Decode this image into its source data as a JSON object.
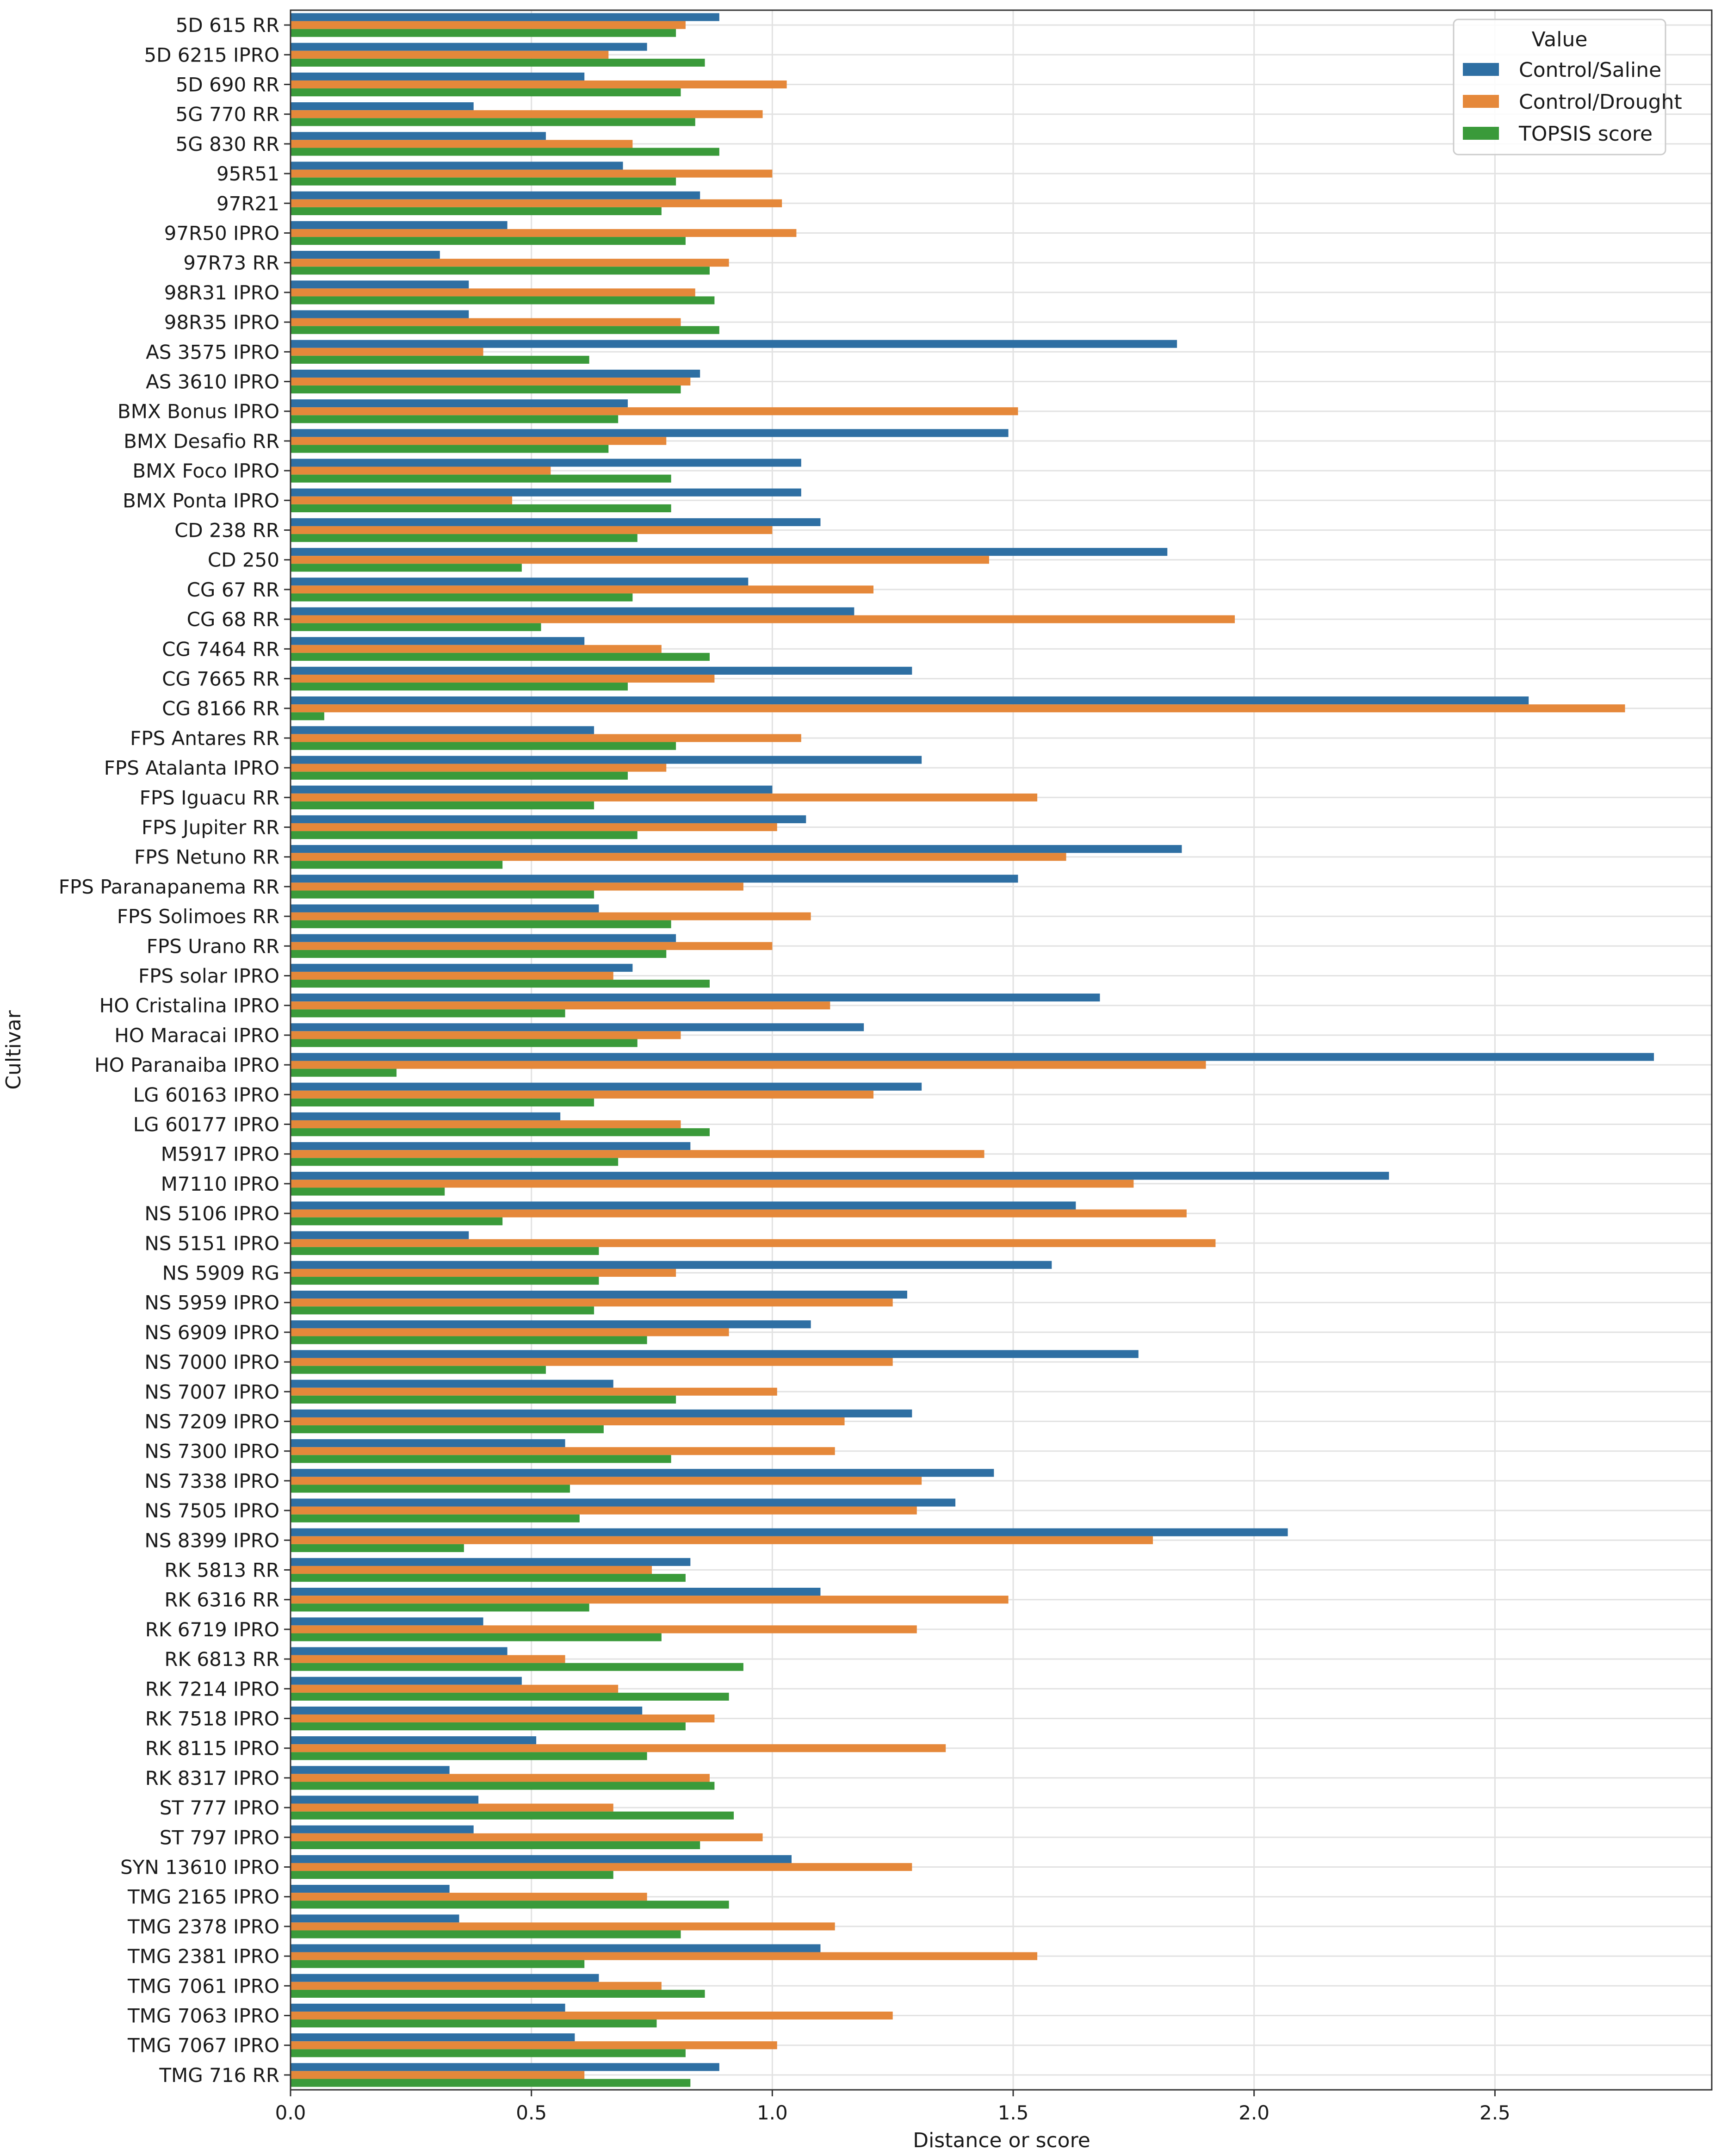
{
  "chart_data": {
    "type": "bar",
    "orientation": "horizontal",
    "title": "",
    "xlabel": "Distance or score",
    "ylabel": "Cultivar",
    "xlim": [
      0,
      2.95
    ],
    "xticks": [
      "0.0",
      "0.5",
      "1.0",
      "1.5",
      "2.0",
      "2.5"
    ],
    "grid": true,
    "legend": {
      "title": "Value",
      "position": "top-right"
    },
    "categories": [
      "5D 615 RR",
      "5D 6215 IPRO",
      "5D 690 RR",
      "5G 770 RR",
      "5G 830 RR",
      "95R51",
      "97R21",
      "97R50 IPRO",
      "97R73 RR",
      "98R31 IPRO",
      "98R35 IPRO",
      "AS 3575 IPRO",
      "AS 3610 IPRO",
      "BMX Bonus IPRO",
      "BMX Desafio RR",
      "BMX Foco IPRO",
      "BMX Ponta IPRO",
      "CD 238 RR",
      "CD 250",
      "CG 67 RR",
      "CG 68 RR",
      "CG 7464 RR",
      "CG 7665 RR",
      "CG 8166 RR",
      "FPS Antares RR",
      "FPS Atalanta IPRO",
      "FPS Iguacu RR",
      "FPS Jupiter RR",
      "FPS Netuno RR",
      "FPS Paranapanema RR",
      "FPS Solimoes RR",
      "FPS Urano RR",
      "FPS solar IPRO",
      "HO Cristalina IPRO",
      "HO Maracai IPRO",
      "HO Paranaiba IPRO",
      "LG 60163 IPRO",
      "LG 60177 IPRO",
      "M5917 IPRO",
      "M7110 IPRO",
      "NS 5106 IPRO",
      "NS 5151 IPRO",
      "NS 5909 RG",
      "NS 5959 IPRO",
      "NS 6909 IPRO",
      "NS 7000 IPRO",
      "NS 7007 IPRO",
      "NS 7209 IPRO",
      "NS 7300 IPRO",
      "NS 7338 IPRO",
      "NS 7505 IPRO",
      "NS 8399 IPRO",
      "RK 5813 RR",
      "RK 6316 RR",
      "RK 6719 IPRO",
      "RK 6813 RR",
      "RK 7214 IPRO",
      "RK 7518 IPRO",
      "RK 8115 IPRO",
      "RK 8317 IPRO",
      "ST 777 IPRO",
      "ST 797 IPRO",
      "SYN 13610 IPRO",
      "TMG 2165 IPRO",
      "TMG 2378 IPRO",
      "TMG 2381 IPRO",
      "TMG 7061 IPRO",
      "TMG 7063 IPRO",
      "TMG 7067 IPRO",
      "TMG 716 RR"
    ],
    "series": [
      {
        "name": "Control/Saline",
        "color": "#2e6fa3",
        "values": [
          0.89,
          0.74,
          0.61,
          0.38,
          0.53,
          0.69,
          0.85,
          0.45,
          0.31,
          0.37,
          0.37,
          1.84,
          0.85,
          0.7,
          1.49,
          1.06,
          1.06,
          1.1,
          1.82,
          0.95,
          1.17,
          0.61,
          1.29,
          2.57,
          0.63,
          1.31,
          1.0,
          1.07,
          1.85,
          1.51,
          0.64,
          0.8,
          0.71,
          1.68,
          1.19,
          2.83,
          1.31,
          0.56,
          0.83,
          2.28,
          1.63,
          0.37,
          1.58,
          1.28,
          1.08,
          1.76,
          0.67,
          1.29,
          0.57,
          1.46,
          1.38,
          2.07,
          0.83,
          1.1,
          0.4,
          0.45,
          0.48,
          0.73,
          0.51,
          0.33,
          0.39,
          0.38,
          1.04,
          0.33,
          0.35,
          1.1,
          0.64,
          0.57,
          0.59,
          0.89
        ]
      },
      {
        "name": "Control/Drought",
        "color": "#e5883a",
        "values": [
          0.82,
          0.66,
          1.03,
          0.98,
          0.71,
          1.0,
          1.02,
          1.05,
          0.91,
          0.84,
          0.81,
          0.4,
          0.83,
          1.51,
          0.78,
          0.54,
          0.46,
          1.0,
          1.45,
          1.21,
          1.96,
          0.77,
          0.88,
          2.77,
          1.06,
          0.78,
          1.55,
          1.01,
          1.61,
          0.94,
          1.08,
          1.0,
          0.67,
          1.12,
          0.81,
          1.9,
          1.21,
          0.81,
          1.44,
          1.75,
          1.86,
          1.92,
          0.8,
          1.25,
          0.91,
          1.25,
          1.01,
          1.15,
          1.13,
          1.31,
          1.3,
          1.79,
          0.75,
          1.49,
          1.3,
          0.57,
          0.68,
          0.88,
          1.36,
          0.87,
          0.67,
          0.98,
          1.29,
          0.74,
          1.13,
          1.55,
          0.77,
          1.25,
          1.01,
          0.61
        ]
      },
      {
        "name": "TOPSIS score",
        "color": "#3a9a3a",
        "values": [
          0.8,
          0.86,
          0.81,
          0.84,
          0.89,
          0.8,
          0.77,
          0.82,
          0.87,
          0.88,
          0.89,
          0.62,
          0.81,
          0.68,
          0.66,
          0.79,
          0.79,
          0.72,
          0.48,
          0.71,
          0.52,
          0.87,
          0.7,
          0.07,
          0.8,
          0.7,
          0.63,
          0.72,
          0.44,
          0.63,
          0.79,
          0.78,
          0.87,
          0.57,
          0.72,
          0.22,
          0.63,
          0.87,
          0.68,
          0.32,
          0.44,
          0.64,
          0.64,
          0.63,
          0.74,
          0.53,
          0.8,
          0.65,
          0.79,
          0.58,
          0.6,
          0.36,
          0.82,
          0.62,
          0.77,
          0.94,
          0.91,
          0.82,
          0.74,
          0.88,
          0.92,
          0.85,
          0.67,
          0.91,
          0.81,
          0.61,
          0.86,
          0.76,
          0.82,
          0.83
        ]
      }
    ]
  }
}
